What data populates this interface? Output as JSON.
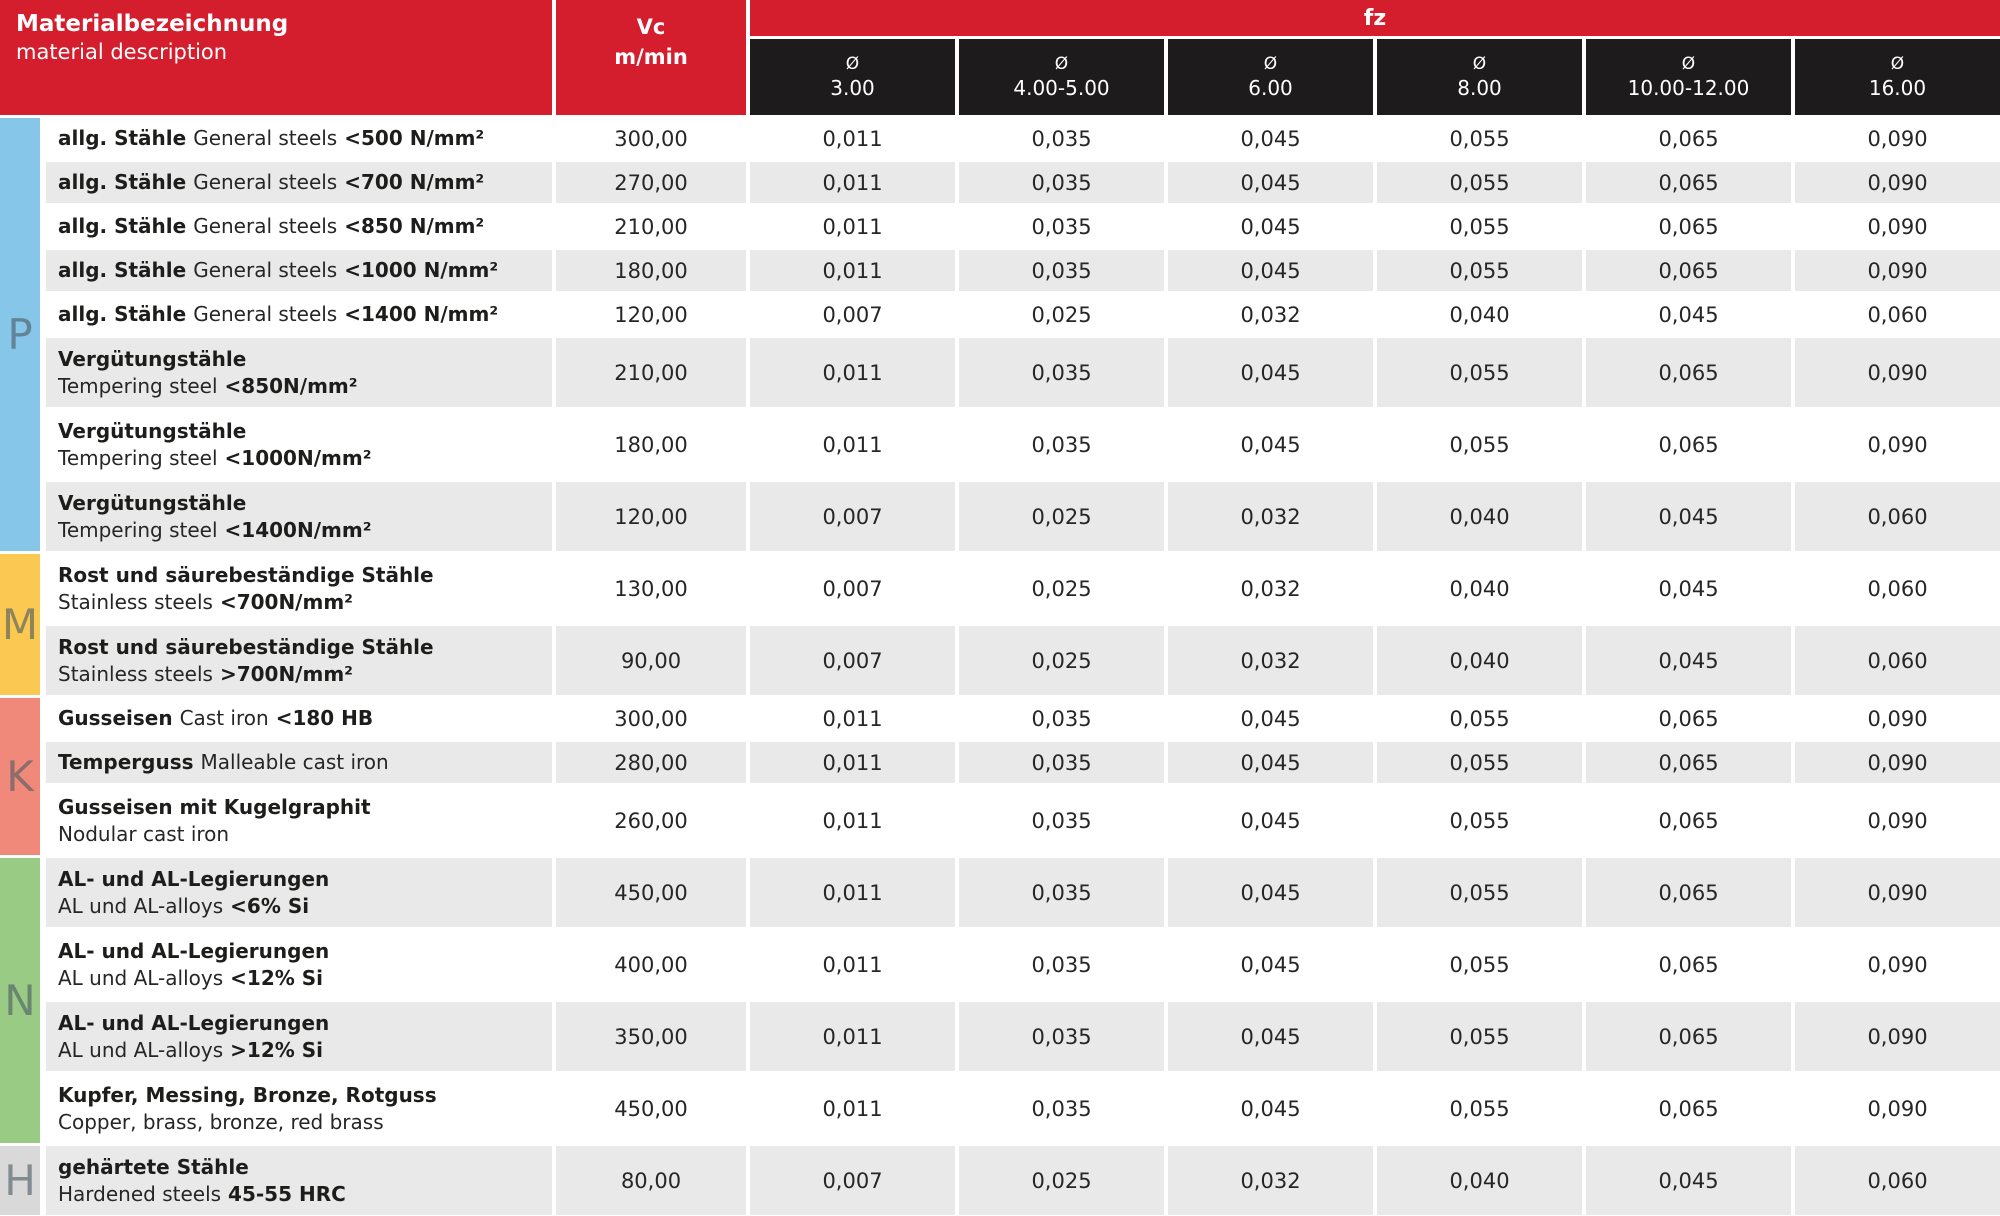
{
  "header": {
    "material_title": "Materialbezeichnung",
    "material_subtitle": "material description",
    "vc_label": "Vc",
    "vc_unit": "m/min",
    "fz_label": "fz",
    "diameter_symbol": "Ø",
    "diameters": [
      "3.00",
      "4.00-5.00",
      "6.00",
      "8.00",
      "10.00-12.00",
      "16.00"
    ]
  },
  "colors": {
    "header_red": "#d51e2d",
    "subheader_black": "#1e1b1c",
    "row_shaded": "#e9e9e9",
    "band_P": "#85c6e9",
    "band_M": "#fbc851",
    "band_K": "#f1897b",
    "band_N": "#9acb84",
    "band_H": "#d9d9d9"
  },
  "groups": [
    {
      "label": "P",
      "color": "#85c6e9",
      "rows": [
        {
          "de": "allg. Stähle",
          "en": "General steels",
          "spec": "<500 N/mm²",
          "two_line": false,
          "shaded": false,
          "vc": "300,00",
          "fz": [
            "0,011",
            "0,035",
            "0,045",
            "0,055",
            "0,065",
            "0,090"
          ]
        },
        {
          "de": "allg. Stähle",
          "en": "General steels",
          "spec": "<700 N/mm²",
          "two_line": false,
          "shaded": true,
          "vc": "270,00",
          "fz": [
            "0,011",
            "0,035",
            "0,045",
            "0,055",
            "0,065",
            "0,090"
          ]
        },
        {
          "de": "allg. Stähle",
          "en": "General steels",
          "spec": "<850 N/mm²",
          "two_line": false,
          "shaded": false,
          "vc": "210,00",
          "fz": [
            "0,011",
            "0,035",
            "0,045",
            "0,055",
            "0,065",
            "0,090"
          ]
        },
        {
          "de": "allg. Stähle",
          "en": "General steels",
          "spec": "<1000 N/mm²",
          "two_line": false,
          "shaded": true,
          "vc": "180,00",
          "fz": [
            "0,011",
            "0,035",
            "0,045",
            "0,055",
            "0,065",
            "0,090"
          ]
        },
        {
          "de": "allg. Stähle",
          "en": "General steels",
          "spec": "<1400 N/mm²",
          "two_line": false,
          "shaded": false,
          "vc": "120,00",
          "fz": [
            "0,007",
            "0,025",
            "0,032",
            "0,040",
            "0,045",
            "0,060"
          ]
        },
        {
          "de": "Vergütungstähle",
          "en": "Tempering steel",
          "spec": "<850N/mm²",
          "two_line": true,
          "shaded": true,
          "vc": "210,00",
          "fz": [
            "0,011",
            "0,035",
            "0,045",
            "0,055",
            "0,065",
            "0,090"
          ]
        },
        {
          "de": "Vergütungstähle",
          "en": "Tempering steel",
          "spec": "<1000N/mm²",
          "two_line": true,
          "shaded": false,
          "vc": "180,00",
          "fz": [
            "0,011",
            "0,035",
            "0,045",
            "0,055",
            "0,065",
            "0,090"
          ]
        },
        {
          "de": "Vergütungstähle",
          "en": "Tempering steel",
          "spec": "<1400N/mm²",
          "two_line": true,
          "shaded": true,
          "vc": "120,00",
          "fz": [
            "0,007",
            "0,025",
            "0,032",
            "0,040",
            "0,045",
            "0,060"
          ]
        }
      ]
    },
    {
      "label": "M",
      "color": "#fbc851",
      "rows": [
        {
          "de": "Rost und säurebeständige Stähle",
          "en": "Stainless steels",
          "spec": "<700N/mm²",
          "two_line": true,
          "shaded": false,
          "vc": "130,00",
          "fz": [
            "0,007",
            "0,025",
            "0,032",
            "0,040",
            "0,045",
            "0,060"
          ]
        },
        {
          "de": "Rost und säurebeständige Stähle",
          "en": "Stainless steels",
          "spec": ">700N/mm²",
          "two_line": true,
          "shaded": true,
          "vc": "90,00",
          "fz": [
            "0,007",
            "0,025",
            "0,032",
            "0,040",
            "0,045",
            "0,060"
          ]
        }
      ]
    },
    {
      "label": "K",
      "color": "#f1897b",
      "rows": [
        {
          "de": "Gusseisen",
          "en": "Cast iron",
          "spec": "<180 HB",
          "two_line": false,
          "shaded": false,
          "vc": "300,00",
          "fz": [
            "0,011",
            "0,035",
            "0,045",
            "0,055",
            "0,065",
            "0,090"
          ]
        },
        {
          "de": "Temperguss",
          "en": "Malleable cast iron",
          "spec": "",
          "two_line": false,
          "shaded": true,
          "vc": "280,00",
          "fz": [
            "0,011",
            "0,035",
            "0,045",
            "0,055",
            "0,065",
            "0,090"
          ]
        },
        {
          "de": "Gusseisen mit Kugelgraphit",
          "en": "Nodular cast iron",
          "spec": "",
          "two_line": true,
          "shaded": false,
          "vc": "260,00",
          "fz": [
            "0,011",
            "0,035",
            "0,045",
            "0,055",
            "0,065",
            "0,090"
          ]
        }
      ]
    },
    {
      "label": "N",
      "color": "#9acb84",
      "rows": [
        {
          "de": "AL- und AL-Legierungen",
          "en": "AL und AL-alloys",
          "spec": "<6% Si",
          "two_line": true,
          "shaded": true,
          "vc": "450,00",
          "fz": [
            "0,011",
            "0,035",
            "0,045",
            "0,055",
            "0,065",
            "0,090"
          ]
        },
        {
          "de": "AL- und AL-Legierungen",
          "en": "AL und AL-alloys",
          "spec": "<12% Si",
          "two_line": true,
          "shaded": false,
          "vc": "400,00",
          "fz": [
            "0,011",
            "0,035",
            "0,045",
            "0,055",
            "0,065",
            "0,090"
          ]
        },
        {
          "de": "AL- und AL-Legierungen",
          "en": "AL und AL-alloys",
          "spec": ">12% Si",
          "two_line": true,
          "shaded": true,
          "vc": "350,00",
          "fz": [
            "0,011",
            "0,035",
            "0,045",
            "0,055",
            "0,065",
            "0,090"
          ]
        },
        {
          "de": "Kupfer, Messing, Bronze, Rotguss",
          "en": "Copper, brass, bronze, red brass",
          "spec": "",
          "two_line": true,
          "shaded": false,
          "vc": "450,00",
          "fz": [
            "0,011",
            "0,035",
            "0,045",
            "0,055",
            "0,065",
            "0,090"
          ]
        }
      ]
    },
    {
      "label": "H",
      "color": "#d9d9d9",
      "rows": [
        {
          "de": "gehärtete Stähle",
          "en": "Hardened steels",
          "spec": "45-55 HRC",
          "two_line": true,
          "shaded": true,
          "vc": "80,00",
          "fz": [
            "0,007",
            "0,025",
            "0,032",
            "0,040",
            "0,045",
            "0,060"
          ]
        }
      ]
    }
  ]
}
